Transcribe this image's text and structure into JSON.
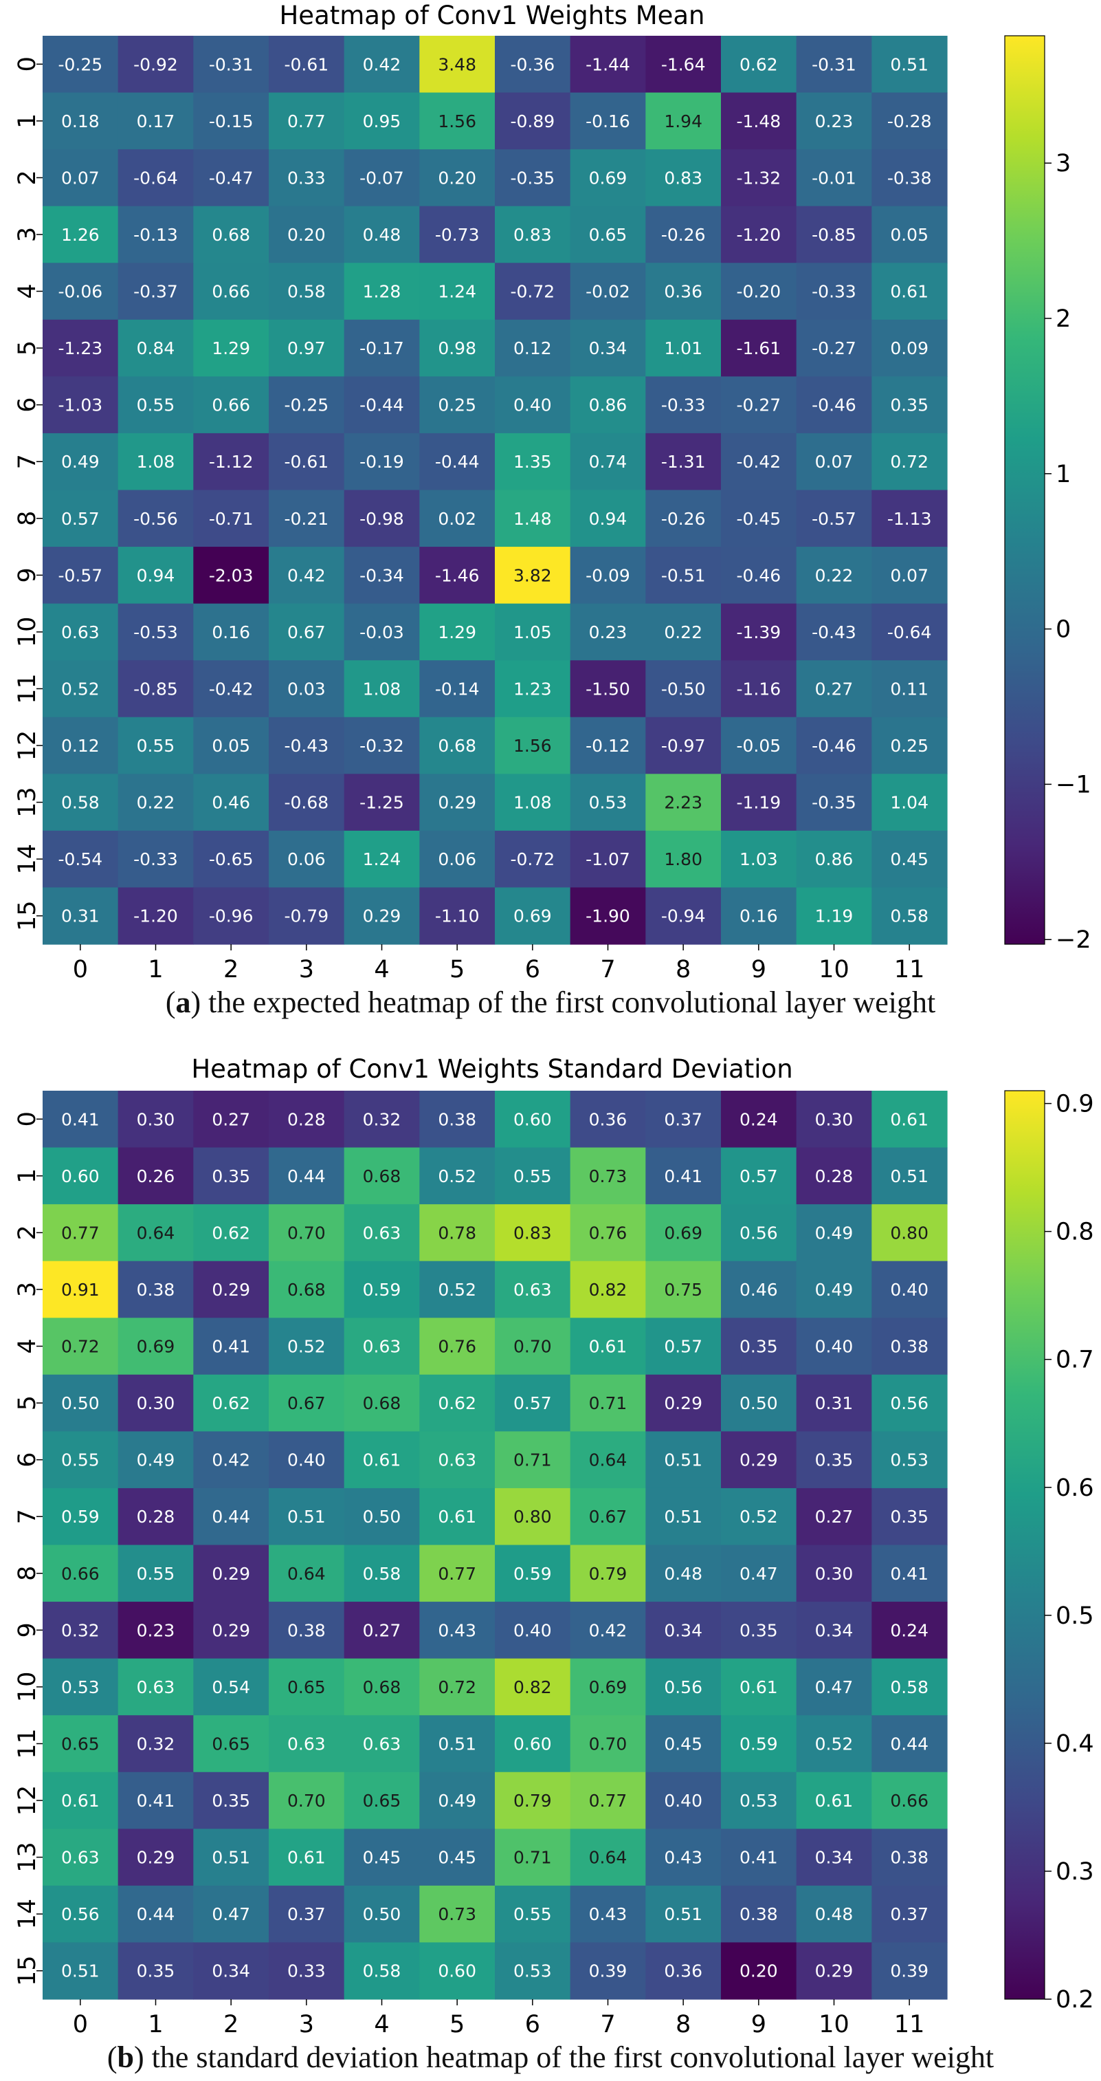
{
  "colormap": {
    "name": "viridis",
    "stops": [
      "#440154",
      "#482878",
      "#3e4a89",
      "#31688e",
      "#26828e",
      "#1f9e89",
      "#35b779",
      "#6ece58",
      "#b5de2b",
      "#fde725"
    ]
  },
  "captions": [
    {
      "letter": "a",
      "text": "the expected heatmap of the first convolutional layer weight"
    },
    {
      "letter": "b",
      "text": "the standard deviation heatmap of the first convolutional layer weight"
    }
  ],
  "chart_data": [
    {
      "type": "heatmap",
      "title": "Heatmap of Conv1 Weights Mean",
      "x_labels": [
        "0",
        "1",
        "2",
        "3",
        "4",
        "5",
        "6",
        "7",
        "8",
        "9",
        "10",
        "11"
      ],
      "y_labels": [
        "0",
        "1",
        "2",
        "3",
        "4",
        "5",
        "6",
        "7",
        "8",
        "9",
        "10",
        "11",
        "12",
        "13",
        "14",
        "15"
      ],
      "vmin": -2.03,
      "vmax": 3.82,
      "colorbar_ticks": [
        -2,
        -1,
        0,
        1,
        2,
        3
      ],
      "colorbar_tick_labels": [
        "−2",
        "−1",
        "0",
        "1",
        "2",
        "3"
      ],
      "values": [
        [
          -0.25,
          -0.92,
          -0.31,
          -0.61,
          0.42,
          3.48,
          -0.36,
          -1.44,
          -1.64,
          0.62,
          -0.31,
          0.51
        ],
        [
          0.18,
          0.17,
          -0.15,
          0.77,
          0.95,
          1.56,
          -0.89,
          -0.16,
          1.94,
          -1.48,
          0.23,
          -0.28
        ],
        [
          0.07,
          -0.64,
          -0.47,
          0.33,
          -0.07,
          0.2,
          -0.35,
          0.69,
          0.83,
          -1.32,
          -0.01,
          -0.38
        ],
        [
          1.26,
          -0.13,
          0.68,
          0.2,
          0.48,
          -0.73,
          0.83,
          0.65,
          -0.26,
          -1.2,
          -0.85,
          0.05
        ],
        [
          -0.06,
          -0.37,
          0.66,
          0.58,
          1.28,
          1.24,
          -0.72,
          -0.02,
          0.36,
          -0.2,
          -0.33,
          0.61
        ],
        [
          -1.23,
          0.84,
          1.29,
          0.97,
          -0.17,
          0.98,
          0.12,
          0.34,
          1.01,
          -1.61,
          -0.27,
          0.09
        ],
        [
          -1.03,
          0.55,
          0.66,
          -0.25,
          -0.44,
          0.25,
          0.4,
          0.86,
          -0.33,
          -0.27,
          -0.46,
          0.35
        ],
        [
          0.49,
          1.08,
          -1.12,
          -0.61,
          -0.19,
          -0.44,
          1.35,
          0.74,
          -1.31,
          -0.42,
          0.07,
          0.72
        ],
        [
          0.57,
          -0.56,
          -0.71,
          -0.21,
          -0.98,
          0.02,
          1.48,
          0.94,
          -0.26,
          -0.45,
          -0.57,
          -1.13
        ],
        [
          -0.57,
          0.94,
          -2.03,
          0.42,
          -0.34,
          -1.46,
          3.82,
          -0.09,
          -0.51,
          -0.46,
          0.22,
          0.07
        ],
        [
          0.63,
          -0.53,
          0.16,
          0.67,
          -0.03,
          1.29,
          1.05,
          0.23,
          0.22,
          -1.39,
          -0.43,
          -0.64
        ],
        [
          0.52,
          -0.85,
          -0.42,
          0.03,
          1.08,
          -0.14,
          1.23,
          -1.5,
          -0.5,
          -1.16,
          0.27,
          0.11
        ],
        [
          0.12,
          0.55,
          0.05,
          -0.43,
          -0.32,
          0.68,
          1.56,
          -0.12,
          -0.97,
          -0.05,
          -0.46,
          0.25
        ],
        [
          0.58,
          0.22,
          0.46,
          -0.68,
          -1.25,
          0.29,
          1.08,
          0.53,
          2.23,
          -1.19,
          -0.35,
          1.04
        ],
        [
          -0.54,
          -0.33,
          -0.65,
          0.06,
          1.24,
          0.06,
          -0.72,
          -1.07,
          1.8,
          1.03,
          0.86,
          0.45
        ],
        [
          0.31,
          -1.2,
          -0.96,
          -0.79,
          0.29,
          -1.1,
          0.69,
          -1.9,
          -0.94,
          0.16,
          1.19,
          0.58
        ]
      ]
    },
    {
      "type": "heatmap",
      "title": "Heatmap of Conv1 Weights Standard Deviation",
      "x_labels": [
        "0",
        "1",
        "2",
        "3",
        "4",
        "5",
        "6",
        "7",
        "8",
        "9",
        "10",
        "11"
      ],
      "y_labels": [
        "0",
        "1",
        "2",
        "3",
        "4",
        "5",
        "6",
        "7",
        "8",
        "9",
        "10",
        "11",
        "12",
        "13",
        "14",
        "15"
      ],
      "vmin": 0.2,
      "vmax": 0.91,
      "colorbar_ticks": [
        0.2,
        0.3,
        0.4,
        0.5,
        0.6,
        0.7,
        0.8,
        0.9
      ],
      "colorbar_tick_labels": [
        "0.2",
        "0.3",
        "0.4",
        "0.5",
        "0.6",
        "0.7",
        "0.8",
        "0.9"
      ],
      "values": [
        [
          0.41,
          0.3,
          0.27,
          0.28,
          0.32,
          0.38,
          0.6,
          0.36,
          0.37,
          0.24,
          0.3,
          0.61
        ],
        [
          0.6,
          0.26,
          0.35,
          0.44,
          0.68,
          0.52,
          0.55,
          0.73,
          0.41,
          0.57,
          0.28,
          0.51
        ],
        [
          0.77,
          0.64,
          0.62,
          0.7,
          0.63,
          0.78,
          0.83,
          0.76,
          0.69,
          0.56,
          0.49,
          0.8
        ],
        [
          0.91,
          0.38,
          0.29,
          0.68,
          0.59,
          0.52,
          0.63,
          0.82,
          0.75,
          0.46,
          0.49,
          0.4
        ],
        [
          0.72,
          0.69,
          0.41,
          0.52,
          0.63,
          0.76,
          0.7,
          0.61,
          0.57,
          0.35,
          0.4,
          0.38
        ],
        [
          0.5,
          0.3,
          0.62,
          0.67,
          0.68,
          0.62,
          0.57,
          0.71,
          0.29,
          0.5,
          0.31,
          0.56
        ],
        [
          0.55,
          0.49,
          0.42,
          0.4,
          0.61,
          0.63,
          0.71,
          0.64,
          0.51,
          0.29,
          0.35,
          0.53
        ],
        [
          0.59,
          0.28,
          0.44,
          0.51,
          0.5,
          0.61,
          0.8,
          0.67,
          0.51,
          0.52,
          0.27,
          0.35
        ],
        [
          0.66,
          0.55,
          0.29,
          0.64,
          0.58,
          0.77,
          0.59,
          0.79,
          0.48,
          0.47,
          0.3,
          0.41
        ],
        [
          0.32,
          0.23,
          0.29,
          0.38,
          0.27,
          0.43,
          0.4,
          0.42,
          0.34,
          0.35,
          0.34,
          0.24
        ],
        [
          0.53,
          0.63,
          0.54,
          0.65,
          0.68,
          0.72,
          0.82,
          0.69,
          0.56,
          0.61,
          0.47,
          0.58
        ],
        [
          0.65,
          0.32,
          0.65,
          0.63,
          0.63,
          0.51,
          0.6,
          0.7,
          0.45,
          0.59,
          0.52,
          0.44
        ],
        [
          0.61,
          0.41,
          0.35,
          0.7,
          0.65,
          0.49,
          0.79,
          0.77,
          0.4,
          0.53,
          0.61,
          0.66
        ],
        [
          0.63,
          0.29,
          0.51,
          0.61,
          0.45,
          0.45,
          0.71,
          0.64,
          0.43,
          0.41,
          0.34,
          0.38
        ],
        [
          0.56,
          0.44,
          0.47,
          0.37,
          0.5,
          0.73,
          0.55,
          0.43,
          0.51,
          0.38,
          0.48,
          0.37
        ],
        [
          0.51,
          0.35,
          0.34,
          0.33,
          0.58,
          0.6,
          0.53,
          0.39,
          0.36,
          0.2,
          0.29,
          0.39
        ]
      ]
    }
  ]
}
